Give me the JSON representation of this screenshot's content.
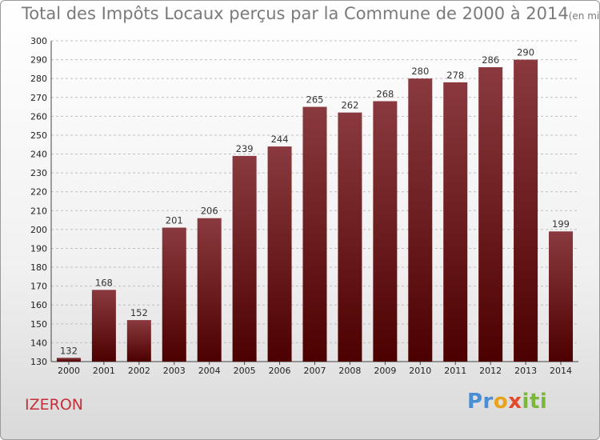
{
  "header": {
    "title": "Total des Impôts Locaux perçus par la Commune de 2000 à 2014",
    "unit": "(en milliers d'€)"
  },
  "commune": "IZERON",
  "logo": {
    "p1": "Pr",
    "p2": "o",
    "p3": "x",
    "p4": "iti"
  },
  "colors": {
    "bar_top": "#8a3a3e",
    "bar_bottom": "#4d0000",
    "grid": "#bfbfbf"
  },
  "chart_data": {
    "type": "bar",
    "title": "Total des Impôts Locaux perçus par la Commune de 2000 à 2014",
    "xlabel": "",
    "ylabel": "en milliers d'€",
    "categories": [
      "2000",
      "2001",
      "2002",
      "2003",
      "2004",
      "2005",
      "2006",
      "2007",
      "2008",
      "2009",
      "2010",
      "2011",
      "2012",
      "2013",
      "2014"
    ],
    "values": [
      132,
      168,
      152,
      201,
      206,
      239,
      244,
      265,
      262,
      268,
      280,
      278,
      286,
      290,
      199
    ],
    "ylim": [
      130,
      300
    ],
    "yticks": [
      130,
      140,
      150,
      160,
      170,
      180,
      190,
      200,
      210,
      220,
      230,
      240,
      250,
      260,
      270,
      280,
      290,
      300
    ],
    "grid": true
  }
}
